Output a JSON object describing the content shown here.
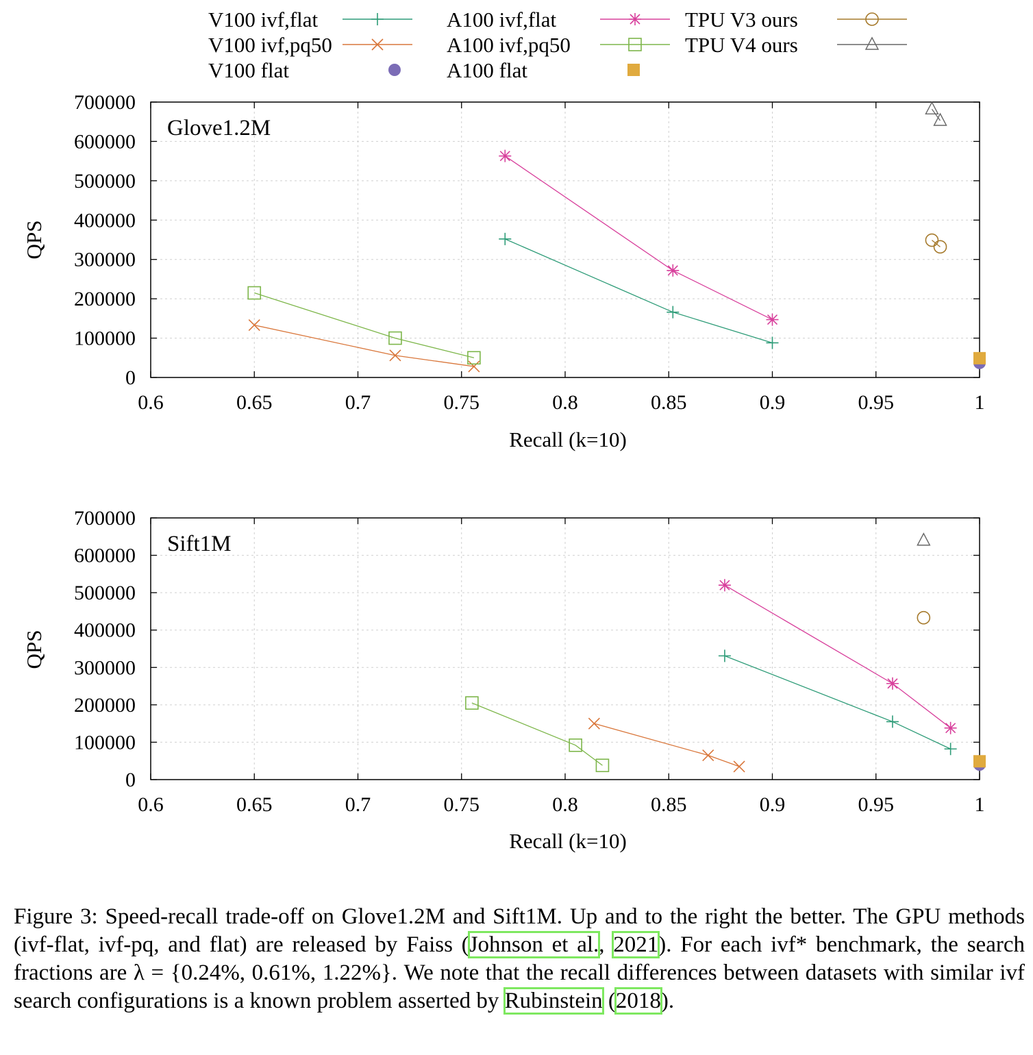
{
  "chart_data": [
    {
      "type": "scatter",
      "title": "Glove1.2M",
      "xlabel": "Recall (k=10)",
      "ylabel": "QPS",
      "xlim": [
        0.6,
        1.0
      ],
      "ylim": [
        0,
        700000
      ],
      "x_ticks": [
        "0.6",
        "0.65",
        "0.7",
        "0.75",
        "0.8",
        "0.85",
        "0.9",
        "0.95",
        "1"
      ],
      "y_ticks": [
        "0",
        "100000",
        "200000",
        "300000",
        "400000",
        "500000",
        "600000",
        "700000"
      ],
      "grid": true,
      "series": [
        {
          "name": "V100 ivf,flat",
          "points": [
            [
              0.771,
              352000
            ],
            [
              0.852,
              166000
            ],
            [
              0.9,
              88000
            ]
          ]
        },
        {
          "name": "V100 ivf,pq50",
          "points": [
            [
              0.65,
              133000
            ],
            [
              0.718,
              56000
            ],
            [
              0.756,
              28000
            ]
          ]
        },
        {
          "name": "V100 flat",
          "points": [
            [
              1.0,
              37000
            ]
          ]
        },
        {
          "name": "A100 ivf,flat",
          "points": [
            [
              0.771,
              563000
            ],
            [
              0.852,
              272000
            ],
            [
              0.9,
              147000
            ]
          ]
        },
        {
          "name": "A100 ivf,pq50",
          "points": [
            [
              0.65,
              215000
            ],
            [
              0.718,
              100000
            ],
            [
              0.756,
              50000
            ]
          ]
        },
        {
          "name": "A100 flat",
          "points": [
            [
              1.0,
              49000
            ]
          ]
        },
        {
          "name": "TPU V3 ours",
          "points": [
            [
              0.977,
              349000
            ],
            [
              0.981,
              332000
            ]
          ]
        },
        {
          "name": "TPU V4 ours",
          "points": [
            [
              0.977,
              682000
            ],
            [
              0.981,
              653000
            ]
          ]
        }
      ]
    },
    {
      "type": "scatter",
      "title": "Sift1M",
      "xlabel": "Recall (k=10)",
      "ylabel": "QPS",
      "xlim": [
        0.6,
        1.0
      ],
      "ylim": [
        0,
        700000
      ],
      "x_ticks": [
        "0.6",
        "0.65",
        "0.7",
        "0.75",
        "0.8",
        "0.85",
        "0.9",
        "0.95",
        "1"
      ],
      "y_ticks": [
        "0",
        "100000",
        "200000",
        "300000",
        "400000",
        "500000",
        "600000",
        "700000"
      ],
      "grid": true,
      "series": [
        {
          "name": "V100 ivf,flat",
          "points": [
            [
              0.877,
              331000
            ],
            [
              0.958,
              155000
            ],
            [
              0.986,
              82000
            ]
          ]
        },
        {
          "name": "V100 ivf,pq50",
          "points": [
            [
              0.814,
              150000
            ],
            [
              0.869,
              65000
            ],
            [
              0.884,
              35000
            ]
          ]
        },
        {
          "name": "V100 flat",
          "points": [
            [
              1.0,
              40000
            ]
          ]
        },
        {
          "name": "A100 ivf,flat",
          "points": [
            [
              0.877,
              520000
            ],
            [
              0.958,
              257000
            ],
            [
              0.986,
              138000
            ]
          ]
        },
        {
          "name": "A100 ivf,pq50",
          "points": [
            [
              0.755,
              205000
            ],
            [
              0.805,
              92000
            ],
            [
              0.818,
              38000
            ]
          ]
        },
        {
          "name": "A100 flat",
          "points": [
            [
              1.0,
              49000
            ]
          ]
        },
        {
          "name": "TPU V3 ours",
          "points": [
            [
              0.973,
              433000
            ]
          ]
        },
        {
          "name": "TPU V4 ours",
          "points": [
            [
              0.973,
              640000
            ]
          ]
        }
      ]
    }
  ],
  "legend": {
    "placement": "top",
    "entries": [
      {
        "label": "V100 ivf,flat",
        "color": "#2e9c78",
        "marker": "plus"
      },
      {
        "label": "V100 ivf,pq50",
        "color": "#d9763a",
        "marker": "cross"
      },
      {
        "label": "V100 flat",
        "color": "#7b6cb6",
        "marker": "filled-circle"
      },
      {
        "label": "A100 ivf,flat",
        "color": "#d8409c",
        "marker": "star"
      },
      {
        "label": "A100 ivf,pq50",
        "color": "#7db64a",
        "marker": "square"
      },
      {
        "label": "A100 flat",
        "color": "#e0aa3e",
        "marker": "filled-square"
      },
      {
        "label": "TPU V3 ours",
        "color": "#a67a2c",
        "marker": "circle"
      },
      {
        "label": "TPU V4 ours",
        "color": "#666666",
        "marker": "triangle"
      }
    ]
  },
  "caption": {
    "s1": "Figure 3:  Speed-recall trade-off on Glove1.2M and Sift1M. Up and to the right the better.  The GPU methods (ivf-flat, ivf-pq, and flat) are released by Faiss (",
    "cite1": "Johnson et al.",
    "s2": ", ",
    "cite2": "2021",
    "s3": ").  For each ivf* benchmark, the search fractions are λ = {0.24%, 0.61%, 1.22%}. We note that the recall differences between datasets with similar ivf search configurations is a known problem asserted by ",
    "cite3": "Rubinstein",
    "s4": " (",
    "cite4": "2018",
    "s5": ")."
  }
}
